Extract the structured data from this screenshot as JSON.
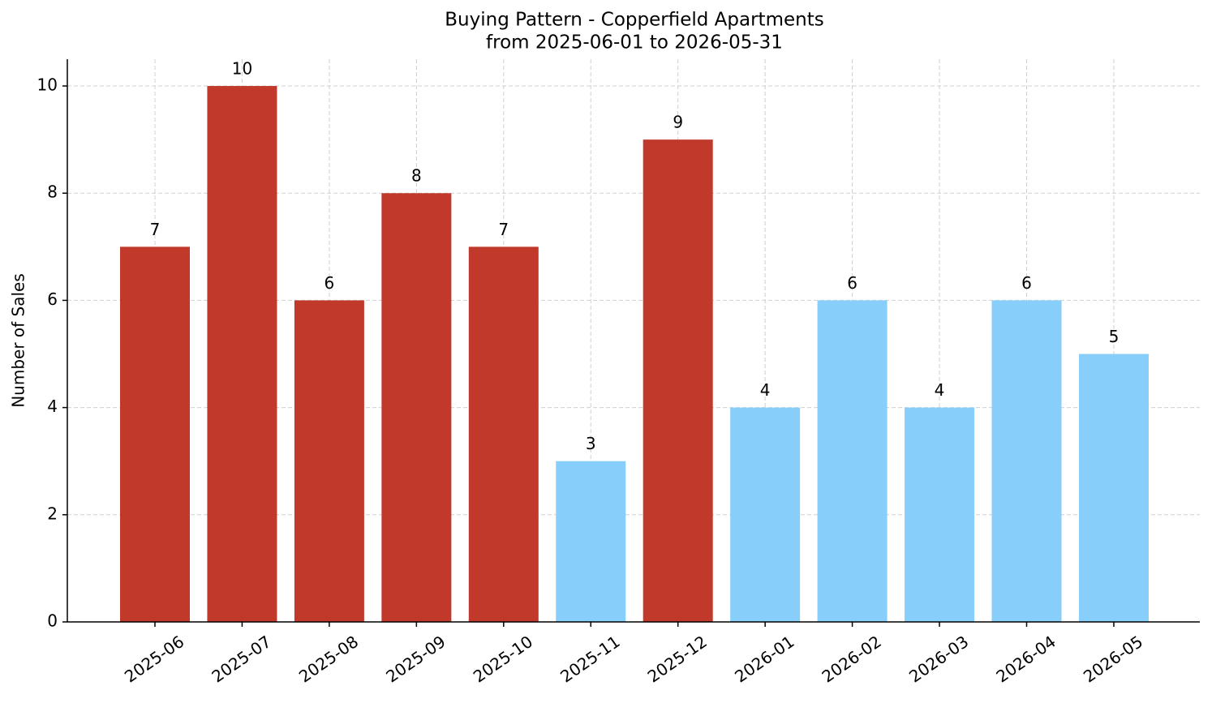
{
  "chart_data": {
    "type": "bar",
    "title": "Buying Pattern - Copperfield Apartments",
    "subtitle": "from 2025-06-01 to 2026-05-31",
    "y_label": "Number of Sales",
    "categories": [
      "2025-06",
      "2025-07",
      "2025-08",
      "2025-09",
      "2025-10",
      "2025-11",
      "2025-12",
      "2026-01",
      "2026-02",
      "2026-03",
      "2026-04",
      "2026-05"
    ],
    "values": [
      7,
      10,
      6,
      8,
      7,
      3,
      9,
      4,
      6,
      4,
      6,
      5
    ],
    "colors": [
      "#c0392b",
      "#c0392b",
      "#c0392b",
      "#c0392b",
      "#c0392b",
      "#87cefa",
      "#c0392b",
      "#87cefa",
      "#87cefa",
      "#87cefa",
      "#87cefa",
      "#87cefa"
    ],
    "ylim": [
      0,
      10.5
    ],
    "yticks": [
      0,
      2,
      4,
      6,
      8,
      10
    ],
    "grid": true
  }
}
